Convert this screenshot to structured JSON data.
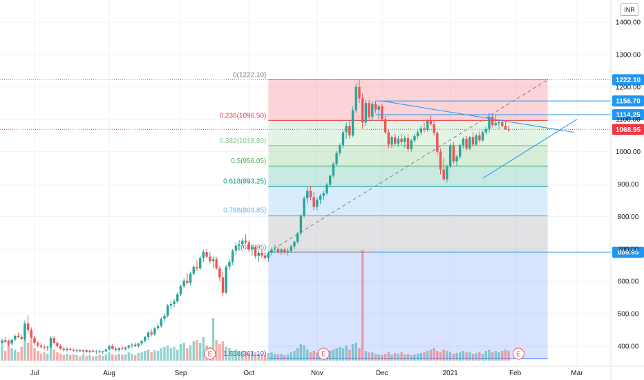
{
  "currency": "INR",
  "colors": {
    "up": "#26a69a",
    "down": "#ef5350",
    "hline": "#2196f3",
    "last": "#f23645",
    "grid": "#f0f3fa",
    "text": "#131722"
  },
  "chart_data": {
    "type": "candlestick",
    "price_axis": {
      "min": 345,
      "max": 1455,
      "ticks": [
        {
          "v": 1400,
          "label": "1400.00"
        },
        {
          "v": 1300,
          "label": "1300.00"
        },
        {
          "v": 1200,
          "label": "1200.00"
        },
        {
          "v": 1100,
          "label": "1100.00"
        },
        {
          "v": 1000,
          "label": "1000.00"
        },
        {
          "v": 900,
          "label": "900.00"
        },
        {
          "v": 800,
          "label": "800.00"
        },
        {
          "v": 700,
          "label": "700.00"
        },
        {
          "v": 600,
          "label": "600.00"
        },
        {
          "v": 500,
          "label": "500.00"
        },
        {
          "v": 400,
          "label": "400.00"
        }
      ]
    },
    "time_axis": {
      "labels": [
        {
          "label": "Jul",
          "i": 10
        },
        {
          "label": "Aug",
          "i": 33
        },
        {
          "label": "Sep",
          "i": 55
        },
        {
          "label": "Oct",
          "i": 76
        },
        {
          "label": "Nov",
          "i": 97
        },
        {
          "label": "Dec",
          "i": 117
        },
        {
          "label": "2021",
          "i": 138
        },
        {
          "label": "Feb",
          "i": 158
        },
        {
          "label": "Mar",
          "i": 177
        }
      ]
    },
    "fibonacci": {
      "start_index": 82,
      "end_index": 168,
      "high": 1222.1,
      "low": 689.95,
      "levels": [
        {
          "ratio": 0,
          "value": 1222.1,
          "label": "0(1222.10)",
          "color": "#787b86"
        },
        {
          "ratio": 0.236,
          "value": 1096.5,
          "label": "0.236(1096.50)",
          "color": "#f23645"
        },
        {
          "ratio": 0.382,
          "value": 1018.8,
          "label": "0.382(1018.80)",
          "color": "#81c784"
        },
        {
          "ratio": 0.5,
          "value": 956.05,
          "label": "0.5(956.05)",
          "color": "#4caf50"
        },
        {
          "ratio": 0.618,
          "value": 893.25,
          "label": "0.618(893.25)",
          "color": "#089981"
        },
        {
          "ratio": 0.786,
          "value": 803.85,
          "label": "0.786(803.85)",
          "color": "#64b5f6"
        },
        {
          "ratio": 1,
          "value": 689.95,
          "label": "1(689.95)",
          "color": "#787b86"
        },
        {
          "ratio": 1.618,
          "value": 361.1,
          "label": "1.618(361.10)",
          "color": "#2962ff"
        }
      ]
    },
    "horizontal_levels": [
      {
        "value": 1222.1,
        "label": "1222.10"
      },
      {
        "value": 1156.7,
        "label": "1156.70"
      },
      {
        "value": 1114.25,
        "label": "1114.25"
      },
      {
        "value": 689.95,
        "label": "689.95"
      }
    ],
    "last_price": {
      "value": 1068.95,
      "label": "1068.95"
    },
    "events": [
      {
        "i": 64,
        "label": "E"
      },
      {
        "i": 99,
        "label": "E"
      },
      {
        "i": 159,
        "label": "E"
      }
    ],
    "ohlc": [
      [
        410,
        424,
        404,
        418
      ],
      [
        418,
        428,
        410,
        413
      ],
      [
        413,
        420,
        400,
        408
      ],
      [
        408,
        422,
        402,
        420
      ],
      [
        420,
        436,
        414,
        432
      ],
      [
        432,
        442,
        425,
        428
      ],
      [
        428,
        436,
        418,
        422
      ],
      [
        422,
        480,
        415,
        470
      ],
      [
        470,
        495,
        440,
        450
      ],
      [
        450,
        458,
        420,
        426
      ],
      [
        426,
        432,
        404,
        410
      ],
      [
        410,
        416,
        396,
        402
      ],
      [
        402,
        410,
        392,
        398
      ],
      [
        398,
        405,
        388,
        395
      ],
      [
        395,
        402,
        385,
        398
      ],
      [
        398,
        430,
        394,
        425
      ],
      [
        425,
        432,
        405,
        410
      ],
      [
        410,
        414,
        394,
        400
      ],
      [
        400,
        406,
        388,
        392
      ],
      [
        392,
        398,
        384,
        388
      ],
      [
        388,
        398,
        383,
        392
      ],
      [
        392,
        396,
        385,
        389
      ],
      [
        389,
        393,
        382,
        386
      ],
      [
        386,
        392,
        380,
        387
      ],
      [
        387,
        392,
        381,
        384
      ],
      [
        384,
        390,
        378,
        387
      ],
      [
        387,
        391,
        380,
        382
      ],
      [
        382,
        388,
        377,
        386
      ],
      [
        386,
        390,
        380,
        383
      ],
      [
        383,
        389,
        376,
        384
      ],
      [
        384,
        390,
        378,
        381
      ],
      [
        381,
        386,
        376,
        384
      ],
      [
        384,
        392,
        381,
        390
      ],
      [
        390,
        404,
        386,
        400
      ],
      [
        400,
        406,
        388,
        392
      ],
      [
        392,
        398,
        384,
        388
      ],
      [
        388,
        396,
        383,
        394
      ],
      [
        394,
        402,
        388,
        392
      ],
      [
        392,
        398,
        386,
        396
      ],
      [
        396,
        404,
        390,
        402
      ],
      [
        402,
        410,
        394,
        405
      ],
      [
        405,
        412,
        396,
        400
      ],
      [
        400,
        410,
        395,
        408
      ],
      [
        408,
        420,
        402,
        416
      ],
      [
        416,
        432,
        410,
        428
      ],
      [
        428,
        446,
        420,
        442
      ],
      [
        442,
        452,
        430,
        436
      ],
      [
        436,
        460,
        432,
        455
      ],
      [
        455,
        470,
        448,
        462
      ],
      [
        462,
        490,
        456,
        484
      ],
      [
        484,
        500,
        476,
        494
      ],
      [
        494,
        530,
        488,
        525
      ],
      [
        525,
        540,
        515,
        530
      ],
      [
        530,
        545,
        520,
        538
      ],
      [
        538,
        565,
        532,
        560
      ],
      [
        560,
        590,
        555,
        585
      ],
      [
        585,
        610,
        578,
        602
      ],
      [
        602,
        625,
        590,
        595
      ],
      [
        595,
        630,
        588,
        624
      ],
      [
        624,
        650,
        618,
        645
      ],
      [
        645,
        665,
        632,
        640
      ],
      [
        640,
        680,
        635,
        672
      ],
      [
        672,
        698,
        660,
        690
      ],
      [
        690,
        700,
        670,
        676
      ],
      [
        676,
        690,
        655,
        662
      ],
      [
        662,
        675,
        640,
        668
      ],
      [
        668,
        675,
        635,
        640
      ],
      [
        640,
        648,
        600,
        612
      ],
      [
        612,
        630,
        555,
        565
      ],
      [
        565,
        650,
        560,
        645
      ],
      [
        645,
        668,
        635,
        660
      ],
      [
        660,
        700,
        650,
        695
      ],
      [
        695,
        720,
        680,
        710
      ],
      [
        710,
        728,
        695,
        715
      ],
      [
        715,
        735,
        705,
        725
      ],
      [
        725,
        745,
        715,
        720
      ],
      [
        720,
        728,
        690,
        698
      ],
      [
        698,
        712,
        680,
        705
      ],
      [
        705,
        712,
        670,
        678
      ],
      [
        678,
        695,
        660,
        688
      ],
      [
        688,
        700,
        672,
        680
      ],
      [
        680,
        690,
        665,
        672
      ],
      [
        672,
        692,
        660,
        688
      ],
      [
        688,
        705,
        680,
        698
      ],
      [
        698,
        712,
        688,
        700
      ],
      [
        700,
        706,
        684,
        690
      ],
      [
        690,
        702,
        682,
        698
      ],
      [
        698,
        704,
        684,
        690
      ],
      [
        690,
        702,
        680,
        694
      ],
      [
        694,
        712,
        688,
        708
      ],
      [
        708,
        726,
        700,
        722
      ],
      [
        722,
        752,
        716,
        748
      ],
      [
        748,
        808,
        742,
        802
      ],
      [
        802,
        862,
        796,
        856
      ],
      [
        856,
        890,
        840,
        880
      ],
      [
        880,
        895,
        850,
        860
      ],
      [
        860,
        875,
        820,
        830
      ],
      [
        830,
        860,
        820,
        852
      ],
      [
        852,
        870,
        838,
        864
      ],
      [
        864,
        880,
        850,
        872
      ],
      [
        872,
        904,
        866,
        898
      ],
      [
        898,
        930,
        890,
        926
      ],
      [
        926,
        968,
        920,
        962
      ],
      [
        962,
        1002,
        955,
        996
      ],
      [
        996,
        1026,
        988,
        1020
      ],
      [
        1020,
        1066,
        1012,
        1060
      ],
      [
        1060,
        1090,
        1040,
        1080
      ],
      [
        1080,
        1096,
        1040,
        1050
      ],
      [
        1050,
        1140,
        1045,
        1128
      ],
      [
        1128,
        1210,
        1120,
        1200
      ],
      [
        1200,
        1222,
        1150,
        1165
      ],
      [
        1165,
        1180,
        1070,
        1090
      ],
      [
        1090,
        1160,
        1080,
        1150
      ],
      [
        1150,
        1160,
        1100,
        1108
      ],
      [
        1108,
        1156,
        1095,
        1148
      ],
      [
        1148,
        1157,
        1120,
        1130
      ],
      [
        1130,
        1145,
        1100,
        1140
      ],
      [
        1140,
        1148,
        1095,
        1100
      ],
      [
        1100,
        1110,
        1055,
        1060
      ],
      [
        1060,
        1070,
        1010,
        1022
      ],
      [
        1022,
        1050,
        1012,
        1045
      ],
      [
        1045,
        1055,
        1018,
        1025
      ],
      [
        1025,
        1048,
        1015,
        1040
      ],
      [
        1040,
        1055,
        1020,
        1030
      ],
      [
        1030,
        1050,
        1012,
        1042
      ],
      [
        1042,
        1055,
        1000,
        1008
      ],
      [
        1008,
        1040,
        1000,
        1035
      ],
      [
        1035,
        1055,
        1028,
        1048
      ],
      [
        1048,
        1068,
        1040,
        1060
      ],
      [
        1060,
        1080,
        1050,
        1072
      ],
      [
        1072,
        1090,
        1060,
        1068
      ],
      [
        1068,
        1100,
        1062,
        1095
      ],
      [
        1095,
        1112,
        1080,
        1085
      ],
      [
        1085,
        1095,
        1050,
        1058
      ],
      [
        1058,
        1062,
        990,
        1000
      ],
      [
        1000,
        1010,
        930,
        945
      ],
      [
        945,
        980,
        910,
        915
      ],
      [
        915,
        960,
        905,
        955
      ],
      [
        955,
        1025,
        948,
        1020
      ],
      [
        1020,
        1030,
        962,
        970
      ],
      [
        970,
        990,
        955,
        985
      ],
      [
        985,
        1025,
        978,
        1020
      ],
      [
        1020,
        1045,
        1010,
        1040
      ],
      [
        1040,
        1048,
        1005,
        1010
      ],
      [
        1010,
        1048,
        1005,
        1045
      ],
      [
        1045,
        1060,
        1015,
        1022
      ],
      [
        1022,
        1056,
        1018,
        1050
      ],
      [
        1050,
        1062,
        1028,
        1035
      ],
      [
        1035,
        1065,
        1030,
        1060
      ],
      [
        1060,
        1080,
        1052,
        1070
      ],
      [
        1070,
        1120,
        1060,
        1108
      ],
      [
        1108,
        1115,
        1075,
        1082
      ],
      [
        1082,
        1112,
        1078,
        1088
      ],
      [
        1088,
        1098,
        1070,
        1092
      ],
      [
        1092,
        1100,
        1075,
        1080
      ],
      [
        1080,
        1092,
        1068,
        1069
      ],
      [
        1069,
        1080,
        1060,
        1068
      ]
    ],
    "volume": [
      22,
      14,
      30,
      18,
      16,
      12,
      20,
      34,
      26,
      30,
      18,
      14,
      10,
      12,
      10,
      20,
      16,
      12,
      10,
      8,
      10,
      8,
      9,
      8,
      6,
      9,
      7,
      8,
      6,
      7,
      8,
      7,
      9,
      12,
      9,
      8,
      10,
      8,
      9,
      12,
      10,
      8,
      11,
      12,
      14,
      16,
      12,
      15,
      14,
      18,
      20,
      22,
      18,
      20,
      16,
      24,
      26,
      18,
      22,
      28,
      30,
      26,
      34,
      22,
      20,
      62,
      30,
      24,
      28,
      20,
      18,
      14,
      16,
      12,
      14,
      12,
      10,
      14,
      12,
      10,
      10,
      9,
      11,
      12,
      10,
      9,
      10,
      8,
      9,
      12,
      14,
      18,
      24,
      22,
      16,
      12,
      14,
      12,
      11,
      10,
      12,
      14,
      16,
      18,
      20,
      18,
      22,
      16,
      24,
      26,
      18,
      160,
      14,
      12,
      12,
      10,
      9,
      8,
      10,
      12,
      9,
      11,
      10,
      12,
      9,
      10,
      8,
      9,
      10,
      11,
      12,
      14,
      16,
      18,
      14,
      12,
      16,
      14,
      12,
      10,
      11,
      12,
      14,
      12,
      12,
      10,
      11,
      12,
      10,
      14,
      16,
      12,
      14,
      12,
      14,
      16,
      14
    ]
  }
}
